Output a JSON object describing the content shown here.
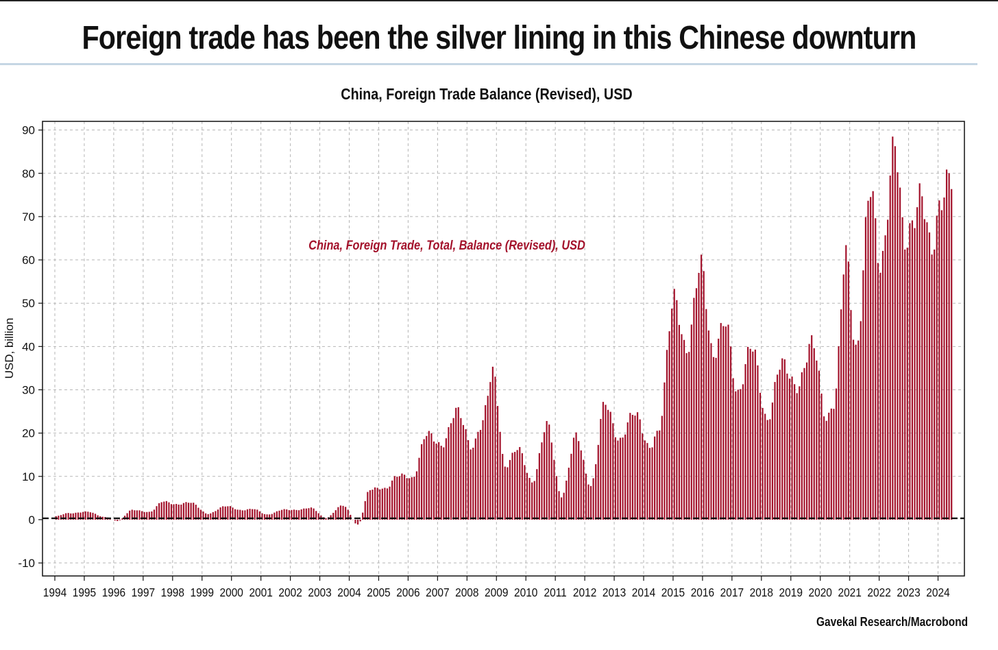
{
  "headline": "Foreign trade has been the silver lining in this Chinese downturn",
  "source": "Gavekal Research/Macrobond",
  "chart_data": {
    "type": "bar",
    "title": "China, Foreign Trade Balance (Revised), USD",
    "ylabel": "USD, billion",
    "xlabel": "",
    "series_label": "China, Foreign Trade, Total, Balance (Revised), USD",
    "bar_color": "#a3122b",
    "ylim": [
      -13,
      92
    ],
    "yticks": [
      -10,
      0,
      10,
      20,
      30,
      40,
      50,
      60,
      70,
      80,
      90
    ],
    "xticks": [
      "1994",
      "1995",
      "1996",
      "1997",
      "1998",
      "1999",
      "2000",
      "2001",
      "2002",
      "2003",
      "2004",
      "2005",
      "2006",
      "2007",
      "2008",
      "2009",
      "2010",
      "2011",
      "2012",
      "2013",
      "2014",
      "2015",
      "2016",
      "2017",
      "2018",
      "2019",
      "2020",
      "2021",
      "2022",
      "2023",
      "2024"
    ],
    "grid": true,
    "freq": "monthly, 3-month moving sum",
    "x_start": "1994-01",
    "x_end": "2024-06",
    "anchors": [
      [
        "1994-01",
        0.8
      ],
      [
        "1994-06",
        1.5
      ],
      [
        "1995-02",
        1.8
      ],
      [
        "1995-09",
        0.6
      ],
      [
        "1996-02",
        -0.3
      ],
      [
        "1996-08",
        2.2
      ],
      [
        "1997-03",
        1.8
      ],
      [
        "1997-09",
        4.2
      ],
      [
        "1998-03",
        3.5
      ],
      [
        "1998-08",
        4.0
      ],
      [
        "1999-03",
        1.3
      ],
      [
        "1999-10",
        3.2
      ],
      [
        "2000-04",
        2.2
      ],
      [
        "2000-09",
        2.5
      ],
      [
        "2001-03",
        1.2
      ],
      [
        "2001-10",
        2.3
      ],
      [
        "2002-04",
        2.3
      ],
      [
        "2002-09",
        2.7
      ],
      [
        "2003-03",
        0.4
      ],
      [
        "2003-10",
        3.4
      ],
      [
        "2004-04",
        -1.2
      ],
      [
        "2004-09",
        7.2
      ],
      [
        "2005-03",
        7.0
      ],
      [
        "2005-08",
        10.3
      ],
      [
        "2006-02",
        9.5
      ],
      [
        "2006-08",
        19.5
      ],
      [
        "2007-02",
        17.5
      ],
      [
        "2007-09",
        25.0
      ],
      [
        "2008-03",
        16.5
      ],
      [
        "2008-06",
        21.0
      ],
      [
        "2008-11",
        35.0
      ],
      [
        "2009-04",
        12.0
      ],
      [
        "2009-09",
        17.0
      ],
      [
        "2010-03",
        8.5
      ],
      [
        "2010-09",
        22.0
      ],
      [
        "2011-03",
        5.5
      ],
      [
        "2011-09",
        19.0
      ],
      [
        "2012-03",
        8.0
      ],
      [
        "2012-09",
        27.0
      ],
      [
        "2013-03",
        18.0
      ],
      [
        "2013-09",
        25.5
      ],
      [
        "2014-03",
        16.0
      ],
      [
        "2014-06",
        20.0
      ],
      [
        "2015-01",
        50.0
      ],
      [
        "2015-06",
        40.0
      ],
      [
        "2015-12",
        58.0
      ],
      [
        "2016-05",
        38.5
      ],
      [
        "2016-10",
        45.0
      ],
      [
        "2017-03",
        29.5
      ],
      [
        "2017-09",
        40.0
      ],
      [
        "2018-03",
        22.5
      ],
      [
        "2018-09",
        37.5
      ],
      [
        "2019-03",
        29.5
      ],
      [
        "2019-09",
        42.0
      ],
      [
        "2020-03",
        23.0
      ],
      [
        "2020-06",
        27.5
      ],
      [
        "2020-11",
        60.0
      ],
      [
        "2021-03",
        40.0
      ],
      [
        "2021-09",
        75.0
      ],
      [
        "2022-01",
        60.0
      ],
      [
        "2022-07",
        84.5
      ],
      [
        "2022-11",
        66.0
      ],
      [
        "2023-02",
        68.0
      ],
      [
        "2023-06",
        73.5
      ],
      [
        "2023-10",
        64.5
      ],
      [
        "2024-02",
        72.0
      ],
      [
        "2024-06",
        81.0
      ]
    ]
  }
}
